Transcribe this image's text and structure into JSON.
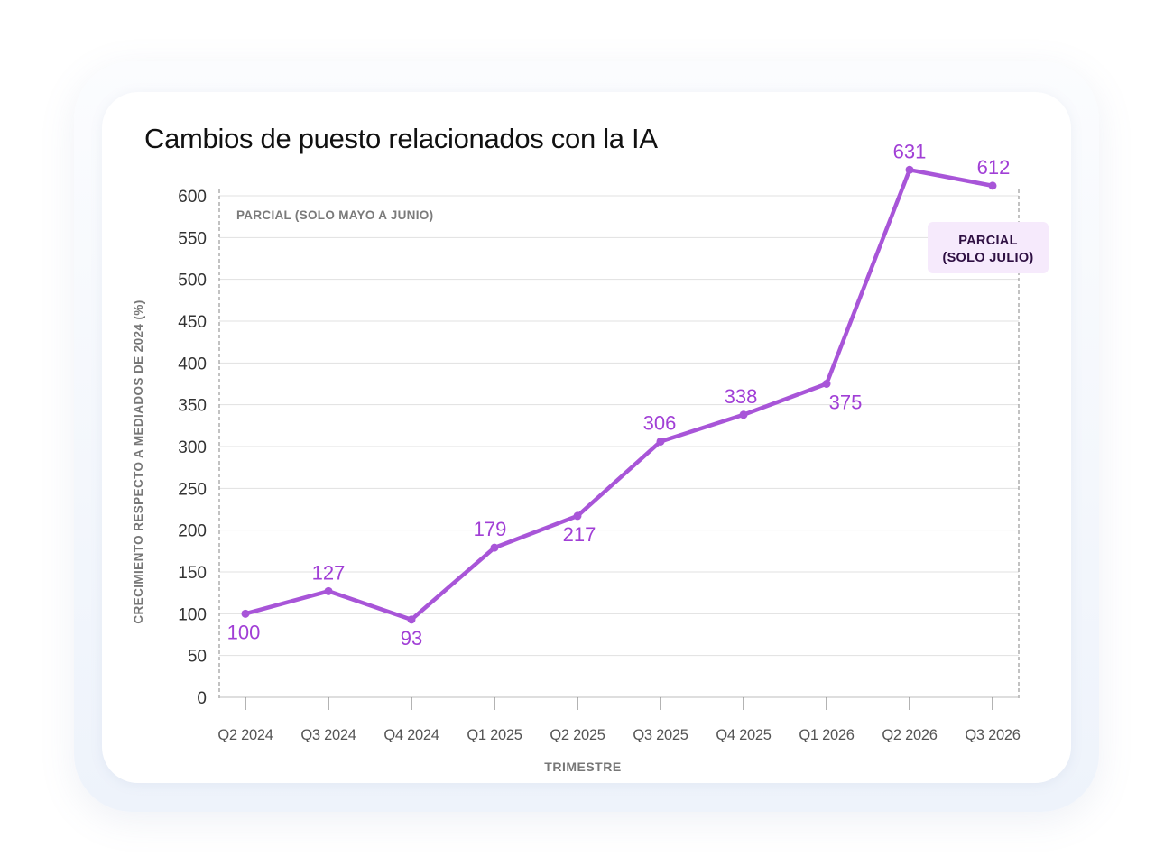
{
  "chart_data": {
    "type": "line",
    "title": "Cambios de puesto relacionados con la IA",
    "xlabel": "TRIMESTRE",
    "ylabel": "CRECIMIENTO RESPECTO A MEDIADOS DE 2024 (%)",
    "categories": [
      "Q2 2024",
      "Q3 2024",
      "Q4 2024",
      "Q1 2025",
      "Q2 2025",
      "Q3 2025",
      "Q4 2025",
      "Q1 2026",
      "Q2 2026",
      "Q3 2026"
    ],
    "series": [
      {
        "values": [
          100,
          127,
          93,
          179,
          217,
          306,
          338,
          375,
          631,
          612
        ],
        "labels": [
          "100",
          "127",
          "93",
          "179",
          "217",
          "306",
          "338",
          "375",
          "631",
          "612"
        ]
      }
    ],
    "ylim": [
      0,
      600
    ],
    "yticks": [
      0,
      50,
      100,
      150,
      200,
      250,
      300,
      350,
      400,
      450,
      500,
      550,
      600
    ],
    "grid": true,
    "annotations": [
      {
        "text": "PARCIAL (SOLO MAYO A JUNIO)",
        "category": "Q2 2024"
      },
      {
        "text": "PARCIAL",
        "text2": "(SOLO JULIO)",
        "category": "Q3 2026"
      }
    ],
    "colors": {
      "line": "#a855d8",
      "label": "#a13fd6",
      "axis_text": "#333333",
      "grid": "#e1e1e1",
      "badge_bg": "#f6eafc",
      "badge_text": "#2e0f42",
      "annotation_text": "#7a7a7a"
    }
  }
}
